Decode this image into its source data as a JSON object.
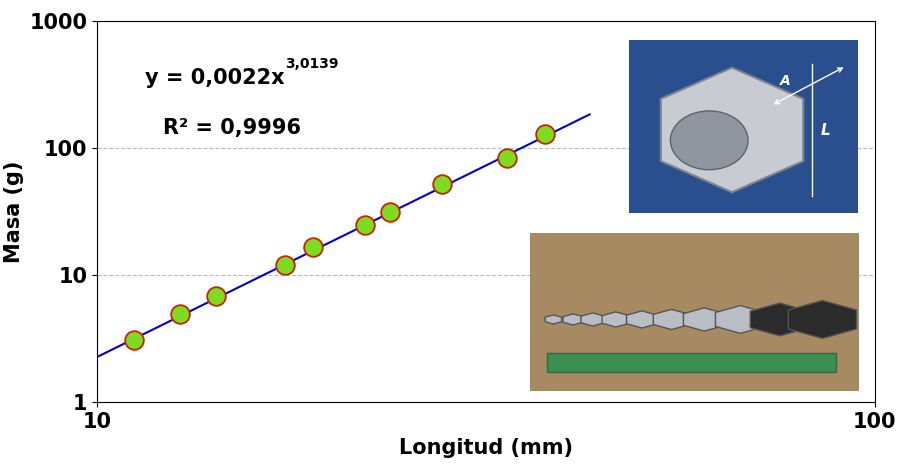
{
  "chart_data": {
    "type": "scatter",
    "x_label": "Longitud (mm)",
    "y_label": "Masa (g)",
    "x": [
      11.16,
      12.79,
      14.22,
      17.45,
      18.95,
      22.1,
      23.8,
      27.8,
      33.65,
      37.65
    ],
    "values": [
      3.08,
      4.93,
      6.83,
      12.0,
      16.6,
      24.8,
      31.3,
      52.1,
      83.4,
      128.9
    ],
    "color": "#7ddc1f",
    "marker": "o",
    "log": true,
    "xlim": [
      10,
      100
    ],
    "xticks": [
      10,
      100
    ],
    "ylim": [
      1,
      1000
    ],
    "yticks": [
      1,
      10,
      100,
      1000
    ],
    "grid": true,
    "trendline": {
      "type": "line",
      "color": "#0000cc",
      "x": [
        10,
        43
      ],
      "values": [
        2.27,
        184
      ]
    },
    "annotations": [
      {
        "text": "y = 0,0022x",
        "superscript": "3,0139"
      },
      {
        "text": "R² = 0,9996"
      }
    ],
    "inset_labels": [
      "A",
      "L"
    ]
  }
}
